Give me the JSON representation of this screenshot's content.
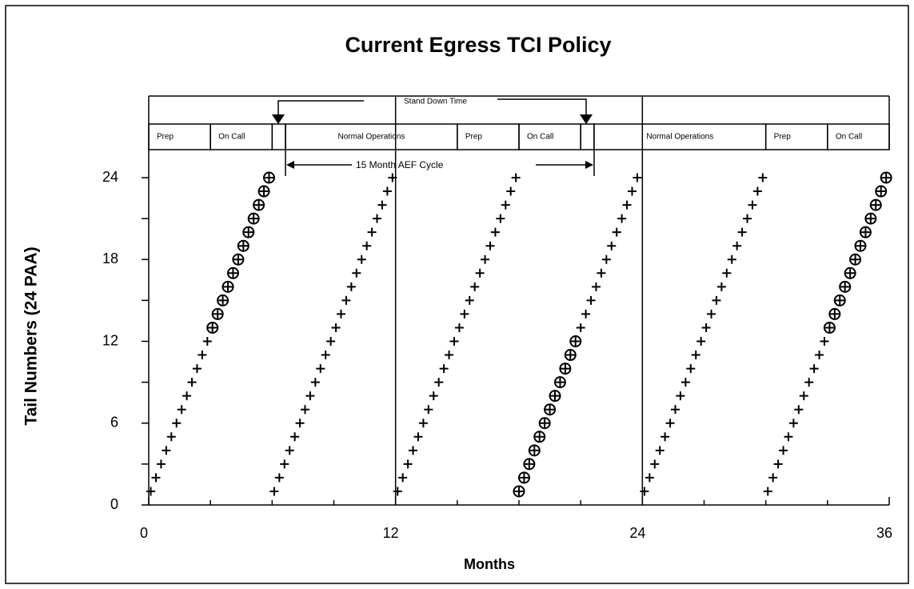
{
  "chart_data": {
    "type": "scatter",
    "title": "Current Egress TCI Policy",
    "x_label": "Months",
    "y_label": "Tail Numbers (24 PAA)",
    "xlim": [
      0,
      36
    ],
    "xticks": [
      0,
      12,
      24,
      36
    ],
    "xminorticks": [
      3,
      6,
      9,
      15,
      18,
      21,
      27,
      30,
      33
    ],
    "ylim": [
      0,
      24
    ],
    "yticks": [
      0,
      6,
      12,
      18,
      24
    ],
    "yminorticks": [
      3,
      9,
      15,
      21
    ],
    "grid": true,
    "color": "#000000",
    "phases": [
      {
        "label": "Prep",
        "start": 0,
        "end": 3
      },
      {
        "label": "On Call",
        "start": 3,
        "end": 6
      },
      {
        "label": null,
        "start": 6,
        "end": 6.65
      },
      {
        "label": "Normal Operations",
        "start": 6.65,
        "end": 15
      },
      {
        "label": "Prep",
        "start": 15,
        "end": 18
      },
      {
        "label": "On Call",
        "start": 18,
        "end": 21
      },
      {
        "label": null,
        "start": 21,
        "end": 21.65
      },
      {
        "label": "Normal Operations",
        "start": 21.65,
        "end": 30
      },
      {
        "label": "Prep",
        "start": 30,
        "end": 33
      },
      {
        "label": "On Call",
        "start": 33,
        "end": 36
      }
    ],
    "annotations": [
      "Stand Down Time",
      "15 Month AEF Cycle"
    ],
    "series": [
      {
        "marker": "plus",
        "x": [
          0.1,
          0.35,
          0.6,
          0.85,
          1.1,
          1.35,
          1.6,
          1.85,
          2.1,
          2.35,
          2.6,
          2.85
        ],
        "values": [
          1,
          2,
          3,
          4,
          5,
          6,
          7,
          8,
          9,
          10,
          11,
          12
        ]
      },
      {
        "marker": "circle-plus",
        "x": [
          3.1,
          3.35,
          3.6,
          3.85,
          4.1,
          4.35,
          4.6,
          4.85,
          5.1,
          5.35,
          5.6,
          5.85
        ],
        "values": [
          13,
          14,
          15,
          16,
          17,
          18,
          19,
          20,
          21,
          22,
          23,
          24
        ]
      },
      {
        "marker": "plus",
        "x": [
          6.1,
          6.35,
          6.6,
          6.85,
          7.1,
          7.35,
          7.6,
          7.85,
          8.1,
          8.35,
          8.6,
          8.85,
          9.1,
          9.35,
          9.6,
          9.85,
          10.1,
          10.35,
          10.6,
          10.85,
          11.1,
          11.35,
          11.6,
          11.85
        ],
        "values": [
          1,
          2,
          3,
          4,
          5,
          6,
          7,
          8,
          9,
          10,
          11,
          12,
          13,
          14,
          15,
          16,
          17,
          18,
          19,
          20,
          21,
          22,
          23,
          24
        ]
      },
      {
        "marker": "plus",
        "x": [
          12.1,
          12.35,
          12.6,
          12.85,
          13.1,
          13.35,
          13.6,
          13.85,
          14.1,
          14.35,
          14.6,
          14.85,
          15.1,
          15.35,
          15.6,
          15.85,
          16.1,
          16.35,
          16.6,
          16.85,
          17.1,
          17.35,
          17.6,
          17.85
        ],
        "values": [
          1,
          2,
          3,
          4,
          5,
          6,
          7,
          8,
          9,
          10,
          11,
          12,
          13,
          14,
          15,
          16,
          17,
          18,
          19,
          20,
          21,
          22,
          23,
          24
        ]
      },
      {
        "marker": "circle-plus",
        "x": [
          18,
          18.25,
          18.5,
          18.75,
          19,
          19.25,
          19.5,
          19.75,
          20,
          20.25,
          20.5,
          20.75
        ],
        "values": [
          1,
          2,
          3,
          4,
          5,
          6,
          7,
          8,
          9,
          10,
          11,
          12
        ]
      },
      {
        "marker": "plus",
        "x": [
          21,
          21.25,
          21.5,
          21.75,
          22,
          22.25,
          22.5,
          22.75,
          23,
          23.25,
          23.5,
          23.75
        ],
        "values": [
          13,
          14,
          15,
          16,
          17,
          18,
          19,
          20,
          21,
          22,
          23,
          24
        ]
      },
      {
        "marker": "plus",
        "x": [
          24.1,
          24.35,
          24.6,
          24.85,
          25.1,
          25.35,
          25.6,
          25.85,
          26.1,
          26.35,
          26.6,
          26.85,
          27.1,
          27.35,
          27.6,
          27.85,
          28.1,
          28.35,
          28.6,
          28.85,
          29.1,
          29.35,
          29.6,
          29.85
        ],
        "values": [
          1,
          2,
          3,
          4,
          5,
          6,
          7,
          8,
          9,
          10,
          11,
          12,
          13,
          14,
          15,
          16,
          17,
          18,
          19,
          20,
          21,
          22,
          23,
          24
        ]
      },
      {
        "marker": "plus",
        "x": [
          30.1,
          30.35,
          30.6,
          30.85,
          31.1,
          31.35,
          31.6,
          31.85,
          32.1,
          32.35,
          32.6,
          32.85
        ],
        "values": [
          1,
          2,
          3,
          4,
          5,
          6,
          7,
          8,
          9,
          10,
          11,
          12
        ]
      },
      {
        "marker": "circle-plus",
        "x": [
          33.1,
          33.35,
          33.6,
          33.85,
          34.1,
          34.35,
          34.6,
          34.85,
          35.1,
          35.35,
          35.6,
          35.85
        ],
        "values": [
          13,
          14,
          15,
          16,
          17,
          18,
          19,
          20,
          21,
          22,
          23,
          24
        ]
      }
    ]
  }
}
